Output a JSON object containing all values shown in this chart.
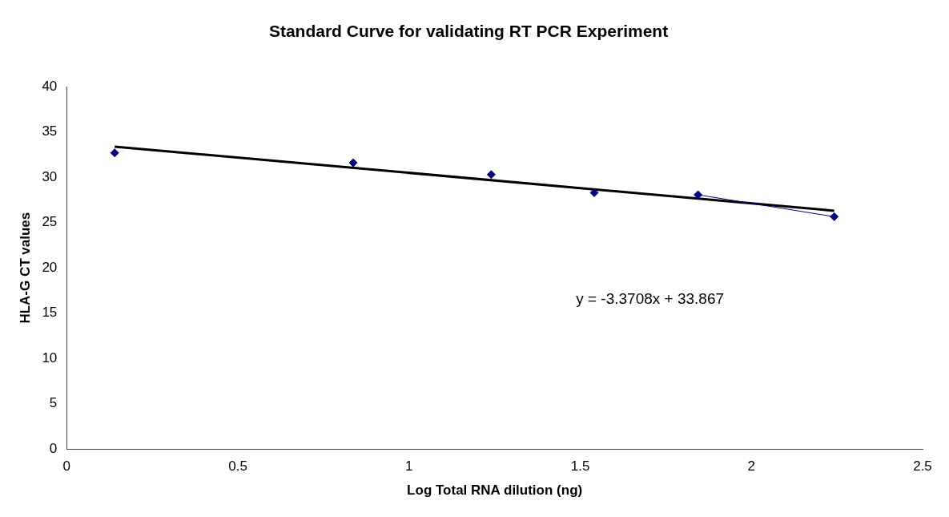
{
  "chart_data": {
    "type": "scatter",
    "title": "Standard Curve for validating RT PCR Experiment",
    "xlabel": "Log Total RNA dilution (ng)",
    "ylabel": "HLA-G CT values",
    "x": [
      0.14,
      0.837,
      1.24,
      1.541,
      1.844,
      2.242
    ],
    "series": [
      {
        "color": "#000080",
        "values": [
          32.7,
          31.6,
          30.3,
          28.3,
          28.07,
          25.65
        ],
        "marker": "diamond"
      },
      {
        "type": "line",
        "color": "#000080",
        "x": [
          1.844,
          2.242
        ],
        "values": [
          28.07,
          25.65
        ],
        "marker": "none"
      },
      {
        "type": "line",
        "color": "#000000",
        "x": [
          0.14,
          2.242
        ],
        "values": [
          33.39,
          26.31
        ],
        "marker": "none"
      }
    ],
    "xlim": [
      0,
      2.5
    ],
    "xticks": [
      0,
      0.5,
      1,
      1.5,
      2,
      2.5
    ],
    "ylim": [
      0,
      40
    ],
    "yticks": [
      0,
      5,
      10,
      15,
      20,
      25,
      30,
      35,
      40
    ],
    "grid": false,
    "legend": false,
    "annotations": [
      "y = -3.3708x + 33.867"
    ]
  }
}
